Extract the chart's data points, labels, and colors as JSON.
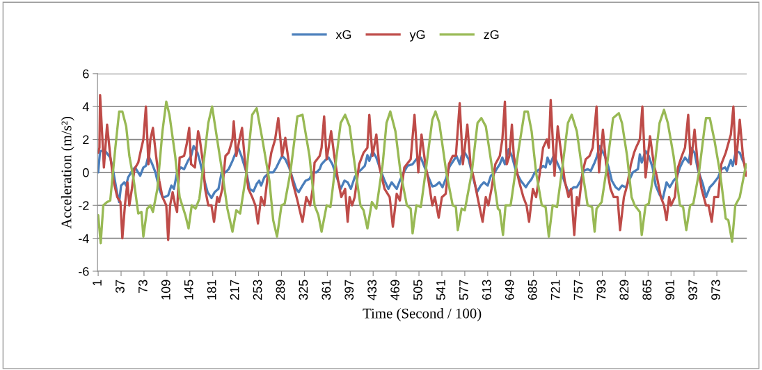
{
  "chart_data": {
    "type": "line",
    "xlabel": "Time (Second / 100)",
    "ylabel": "Acceleration (m/s²)",
    "xlim": [
      0,
      1020
    ],
    "ylim": [
      -6,
      6
    ],
    "xticks": [
      1,
      37,
      73,
      109,
      145,
      181,
      217,
      253,
      289,
      325,
      361,
      397,
      433,
      469,
      505,
      541,
      577,
      613,
      649,
      685,
      721,
      757,
      793,
      829,
      865,
      901,
      937,
      973
    ],
    "yticks": [
      -6,
      -4,
      -2,
      0,
      2,
      4,
      6
    ],
    "grid": "y",
    "legend": "top",
    "marker": "none",
    "line_style": "solid",
    "series": [
      {
        "name": "xG",
        "color": "#4a7ebb",
        "x": [
          1,
          4,
          12,
          20,
          25,
          31,
          34,
          37,
          42,
          45,
          48,
          56,
          59,
          67,
          72,
          76,
          80,
          86,
          91,
          97,
          102,
          105,
          111,
          116,
          120,
          125,
          131,
          136,
          142,
          147,
          151,
          157,
          160,
          168,
          173,
          179,
          184,
          190,
          195,
          201,
          206,
          212,
          215,
          221,
          226,
          234,
          239,
          245,
          250,
          254,
          257,
          262,
          270,
          276,
          281,
          286,
          290,
          295,
          301,
          306,
          312,
          316,
          322,
          327,
          333,
          338,
          344,
          349,
          352,
          358,
          363,
          369,
          376,
          382,
          388,
          393,
          398,
          404,
          409,
          415,
          420,
          424,
          427,
          432,
          438,
          446,
          451,
          457,
          462,
          470,
          475,
          481,
          487,
          495,
          503,
          508,
          515,
          520,
          526,
          531,
          537,
          542,
          548,
          553,
          559,
          564,
          569,
          572,
          577,
          583,
          588,
          596,
          602,
          607,
          613,
          618,
          624,
          627,
          632,
          636,
          640,
          646,
          651,
          658,
          665,
          673,
          676,
          682,
          687,
          695,
          700,
          704,
          707,
          711,
          717,
          722,
          729,
          734,
          740,
          748,
          753,
          759,
          764,
          770,
          775,
          781,
          784,
          789,
          797,
          803,
          808,
          814,
          819,
          824,
          830,
          835,
          841,
          849,
          852,
          855,
          861,
          866,
          872,
          877,
          883,
          888,
          894,
          899,
          905,
          910,
          915,
          920,
          923,
          929,
          932,
          938,
          943,
          951,
          956,
          962,
          967,
          975,
          980,
          986,
          989,
          995,
          998,
          1003,
          1009,
          1014,
          1019
        ],
        "values": [
          0,
          1.3,
          1.3,
          0.9,
          0,
          -1.3,
          -1.8,
          -0.8,
          -0.6,
          -0.8,
          -0.3,
          0.2,
          0.3,
          -0.2,
          0.3,
          0.4,
          1.0,
          0.5,
          0,
          -1.0,
          -1.5,
          -1.5,
          -1.4,
          -0.8,
          -1.0,
          0,
          0.3,
          0.2,
          0.7,
          1.0,
          1.6,
          1.2,
          0.8,
          -0.5,
          -1.2,
          -1.55,
          -1.2,
          -1.0,
          0,
          0,
          0.2,
          0.7,
          1.0,
          1.5,
          1.0,
          0,
          -1.0,
          -1.15,
          -0.7,
          -0.5,
          -0.8,
          -0.3,
          0,
          0,
          0.3,
          0.7,
          1.0,
          0.8,
          0.3,
          -0.3,
          -1.0,
          -1.2,
          -0.8,
          -0.5,
          -0.4,
          0,
          0,
          0.2,
          0.5,
          0.75,
          0.9,
          0.5,
          -0.3,
          -1.0,
          -0.5,
          -0.6,
          -1.0,
          -0.3,
          0,
          0.2,
          0.4,
          1.05,
          0.7,
          1.3,
          0.9,
          0,
          -0.5,
          -1.0,
          -0.6,
          -1.0,
          -0.5,
          0,
          0.4,
          0.5,
          0.9,
          0.9,
          0.2,
          -0.3,
          -0.85,
          -0.8,
          -0.6,
          -0.9,
          -0.3,
          0.35,
          0.7,
          1.0,
          0.5,
          1.0,
          1.2,
          0.8,
          0,
          -1.2,
          -0.8,
          -0.6,
          -0.8,
          -0.2,
          0,
          0.2,
          0.5,
          0.9,
          0.5,
          1.4,
          1.0,
          0,
          -0.5,
          -0.9,
          -0.7,
          -0.4,
          0,
          0.2,
          0.4,
          0.3,
          0.9,
          0.5,
          1.05,
          0.6,
          0,
          -0.6,
          -1.2,
          -0.9,
          -0.9,
          -0.5,
          0.1,
          0.2,
          0.1,
          0.6,
          0.9,
          1.6,
          1.0,
          0.3,
          -0.5,
          -0.9,
          -1.05,
          -0.8,
          -0.9,
          -0.5,
          0,
          0.2,
          1.1,
          0.6,
          1.3,
          1.0,
          0.3,
          -0.8,
          -1.35,
          -1.6,
          -0.6,
          -0.9,
          -0.5,
          -0.3,
          0.3,
          0.7,
          0.9,
          0.6,
          1.5,
          1.2,
          0.2,
          -0.7,
          -1.5,
          -0.9,
          -0.7,
          -0.3,
          0.2,
          0.3,
          0.1,
          0.75,
          0.4,
          1.3,
          1.2,
          0.7,
          0.3
        ]
      },
      {
        "name": "yG",
        "color": "#be4b48",
        "x": [
          1,
          3,
          4,
          10,
          15,
          20,
          25,
          31,
          36,
          39,
          43,
          47,
          50,
          54,
          58,
          64,
          69,
          72,
          76,
          80,
          83,
          87,
          92,
          97,
          102,
          108,
          111,
          114,
          118,
          122,
          125,
          129,
          136,
          140,
          144,
          147,
          153,
          158,
          160,
          166,
          169,
          174,
          179,
          183,
          188,
          191,
          196,
          201,
          206,
          212,
          214,
          218,
          223,
          227,
          232,
          237,
          243,
          248,
          252,
          257,
          262,
          268,
          273,
          279,
          284,
          290,
          295,
          301,
          306,
          314,
          322,
          328,
          334,
          338,
          341,
          349,
          352,
          356,
          360,
          363,
          367,
          372,
          378,
          383,
          389,
          393,
          396,
          400,
          404,
          411,
          418,
          424,
          427,
          432,
          438,
          443,
          451,
          459,
          464,
          470,
          475,
          482,
          492,
          498,
          504,
          509,
          515,
          520,
          526,
          530,
          536,
          541,
          547,
          552,
          558,
          563,
          569,
          574,
          577,
          581,
          586,
          592,
          597,
          605,
          610,
          614,
          619,
          625,
          632,
          636,
          640,
          643,
          647,
          651,
          654,
          662,
          669,
          674,
          678,
          684,
          689,
          695,
          700,
          706,
          709,
          712,
          718,
          723,
          729,
          734,
          740,
          744,
          749,
          753,
          756,
          762,
          767,
          773,
          778,
          784,
          788,
          794,
          799,
          806,
          811,
          817,
          821,
          827,
          832,
          838,
          843,
          846,
          852,
          856,
          861,
          868,
          874,
          879,
          885,
          890,
          894,
          898,
          901,
          907,
          912,
          918,
          923,
          928,
          932,
          938,
          943,
          949,
          956,
          960,
          965,
          969,
          975,
          980,
          987,
          995,
          999,
          1003,
          1009,
          1014,
          1019
        ],
        "values": [
          1.2,
          1.5,
          4.7,
          0.3,
          2.9,
          1.0,
          -0.5,
          -1.5,
          -1.8,
          -4.0,
          -2.0,
          -0.6,
          -2.0,
          -1.0,
          0.2,
          0.6,
          1.5,
          2.0,
          4.0,
          0.5,
          2.0,
          2.7,
          1.0,
          -0.5,
          -1.5,
          -2.0,
          -4.1,
          -2.0,
          -1.2,
          -2.0,
          -2.4,
          0.9,
          1.0,
          1.7,
          2.7,
          0.5,
          0.3,
          2.5,
          2.2,
          0.5,
          -1.0,
          -2.0,
          -2.0,
          -3.0,
          -1.5,
          -1.8,
          -1.0,
          1.0,
          1.2,
          2.0,
          3.1,
          1.0,
          2.0,
          2.7,
          0.5,
          -1.0,
          -1.5,
          -2.0,
          -3.1,
          -1.5,
          -2.0,
          0,
          1.2,
          2.0,
          3.3,
          1.0,
          2.1,
          0.5,
          -0.5,
          -1.7,
          -3.0,
          -1.5,
          -2.0,
          -1.0,
          0.6,
          1.0,
          1.5,
          3.4,
          0.8,
          1.5,
          2.5,
          1.0,
          -0.5,
          -1.5,
          -1.0,
          -3.0,
          -1.5,
          -2.0,
          -1.5,
          0.5,
          1.2,
          1.5,
          3.5,
          1.0,
          2.3,
          0.3,
          -1.0,
          -1.5,
          -3.3,
          -1.3,
          -1.7,
          0.3,
          0.8,
          3.5,
          0,
          2.3,
          0.5,
          -0.5,
          -2.0,
          -1.5,
          -2.75,
          -1.5,
          -1.3,
          0.5,
          1.0,
          1.0,
          4.2,
          0.5,
          1.5,
          2.9,
          0.5,
          -0.5,
          -1.5,
          -3.0,
          -1.5,
          -2.0,
          -1.0,
          0.5,
          1.0,
          2.0,
          4.3,
          0.5,
          1.0,
          2.9,
          1.0,
          -0.5,
          -1.5,
          -2.0,
          -3.0,
          -1.0,
          -1.5,
          0,
          1.5,
          2.0,
          1.5,
          4.4,
          -0.2,
          2.8,
          1.0,
          -0.5,
          -1.5,
          -1.0,
          -3.8,
          -1.5,
          -2.0,
          0,
          0.8,
          1.0,
          1.5,
          4.0,
          0,
          2.6,
          0.5,
          -1.0,
          -1.5,
          -1.5,
          -3.5,
          -1.5,
          -0.8,
          0.5,
          1.2,
          1.5,
          2.0,
          4.0,
          -0.3,
          2.2,
          0.5,
          -0.3,
          -1.5,
          -2.0,
          -2.9,
          -1.5,
          -2.0,
          -1.5,
          0.3,
          1.0,
          1.5,
          3.5,
          0.5,
          2.6,
          0.5,
          -1.0,
          -2.0,
          -2.0,
          -3.0,
          -1.5,
          -1.5,
          0.5,
          1.2,
          2.3,
          4.0,
          0.5,
          3.2,
          1.0,
          -0.2
        ]
      },
      {
        "name": "zG",
        "color": "#98b954",
        "x": [
          1,
          5,
          9,
          15,
          20,
          28,
          34,
          39,
          45,
          50,
          57,
          64,
          69,
          72,
          78,
          83,
          87,
          94,
          102,
          108,
          113,
          122,
          129,
          138,
          143,
          148,
          154,
          160,
          174,
          180,
          196,
          204,
          212,
          218,
          224,
          234,
          243,
          250,
          259,
          270,
          276,
          282,
          289,
          294,
          303,
          314,
          322,
          333,
          341,
          347,
          352,
          360,
          366,
          374,
          382,
          389,
          396,
          404,
          413,
          418,
          424,
          431,
          438,
          448,
          454,
          460,
          468,
          476,
          486,
          492,
          495,
          501,
          508,
          517,
          526,
          531,
          537,
          548,
          558,
          563,
          566,
          572,
          577,
          588,
          597,
          603,
          610,
          621,
          629,
          632,
          637,
          641,
          649,
          662,
          671,
          676,
          682,
          689,
          698,
          704,
          709,
          715,
          722,
          731,
          739,
          745,
          753,
          762,
          770,
          777,
          781,
          784,
          792,
          799,
          810,
          819,
          824,
          832,
          839,
          844,
          852,
          855,
          861,
          866,
          874,
          883,
          890,
          896,
          905,
          915,
          920,
          925,
          931,
          936,
          945,
          953,
          956,
          962,
          969,
          978,
          987,
          991,
          997,
          1002,
          1009,
          1014,
          1019
        ],
        "values": [
          -2.6,
          -4.3,
          -2.0,
          -1.8,
          -1.7,
          1.5,
          3.7,
          3.7,
          2.8,
          1.0,
          -0.5,
          -2.5,
          -2.4,
          -3.9,
          -2.2,
          -2.0,
          -2.4,
          -1.0,
          2.5,
          4.3,
          3.5,
          1.0,
          -1.5,
          -2.6,
          -3.4,
          -2.0,
          -2.2,
          -1.6,
          3.0,
          4.0,
          0,
          -2.2,
          -3.6,
          -2.3,
          -2.5,
          0,
          3.5,
          3.9,
          2.0,
          -0.5,
          -2.9,
          -3.9,
          -2.0,
          -1.9,
          0,
          3.4,
          3.5,
          1.0,
          -2.0,
          -2.6,
          -3.6,
          -2.0,
          -2.1,
          0.5,
          3.0,
          3.5,
          2.8,
          0.5,
          -2.0,
          -2.3,
          -3.4,
          -1.8,
          -2.2,
          0.5,
          3.0,
          3.7,
          2.5,
          0,
          -2.0,
          -2.2,
          -3.7,
          -2.0,
          -2.1,
          0.5,
          3.2,
          3.7,
          3.0,
          0,
          -2.0,
          -2.1,
          -3.5,
          -2.2,
          -2.3,
          0,
          3.0,
          3.3,
          2.8,
          0,
          -2.2,
          -2.3,
          -3.8,
          -2.0,
          -2.0,
          1.5,
          3.7,
          3.7,
          2.5,
          0,
          -2.0,
          -2.1,
          -3.9,
          -2.0,
          -2.1,
          0.5,
          3.0,
          3.5,
          2.5,
          0,
          -2.0,
          -2.1,
          -3.6,
          -2.2,
          -1.8,
          0,
          3.3,
          3.6,
          3.0,
          1.0,
          -1.5,
          -2.0,
          -2.4,
          -3.8,
          -2.0,
          -1.9,
          0,
          3.0,
          3.8,
          3.0,
          1.0,
          -2.0,
          -2.1,
          -3.5,
          -2.0,
          -1.9,
          0,
          2.5,
          3.3,
          3.3,
          2.0,
          0,
          -2.8,
          -2.9,
          -4.2,
          -2.0,
          -1.5,
          -0.5,
          0.5
        ]
      }
    ]
  }
}
